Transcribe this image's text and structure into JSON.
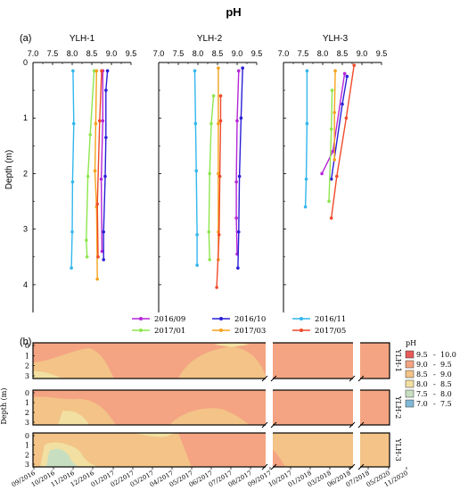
{
  "figure": {
    "title": "pH",
    "panel_a": "(a)",
    "panel_b": "(b)"
  },
  "chart_data": [
    {
      "type": "line",
      "orientation": "profile",
      "subplot": "YLH-1",
      "title": "YLH-1",
      "x_ticks": [
        "7.0",
        "7.5",
        "8.0",
        "8.5",
        "9.0",
        "9.5"
      ],
      "xlim": [
        7.0,
        9.5
      ],
      "ylim": [
        0,
        4.5
      ],
      "y_inverted": true,
      "ylabel": "Depth (m)",
      "y_ticks": [
        "0",
        "1",
        "2",
        "3",
        "4"
      ],
      "series": [
        {
          "name": "2016/09",
          "color": "#b626d8",
          "points": [
            [
              8.78,
              0.15
            ],
            [
              8.78,
              1.05
            ],
            [
              8.74,
              2.1
            ],
            [
              8.76,
              3.4
            ]
          ]
        },
        {
          "name": "2016/10",
          "color": "#2a1fd6",
          "points": [
            [
              8.9,
              0.15
            ],
            [
              8.86,
              0.5
            ],
            [
              8.86,
              1.35
            ],
            [
              8.84,
              2.05
            ],
            [
              8.8,
              3.05
            ],
            [
              8.8,
              3.55
            ]
          ]
        },
        {
          "name": "2016/11",
          "color": "#33b6ee",
          "points": [
            [
              8.02,
              0.15
            ],
            [
              8.04,
              1.1
            ],
            [
              8.01,
              2.15
            ],
            [
              8.0,
              3.05
            ],
            [
              7.98,
              3.7
            ]
          ]
        },
        {
          "name": "2017/01",
          "color": "#8ee64e",
          "points": [
            [
              8.56,
              0.15
            ],
            [
              8.46,
              1.3
            ],
            [
              8.4,
              2.05
            ],
            [
              8.36,
              3.2
            ],
            [
              8.38,
              3.5
            ]
          ]
        },
        {
          "name": "2017/03",
          "color": "#f5a21b",
          "points": [
            [
              8.62,
              0.15
            ],
            [
              8.6,
              1.1
            ],
            [
              8.58,
              1.95
            ],
            [
              8.62,
              2.6
            ],
            [
              8.64,
              3.9
            ]
          ]
        },
        {
          "name": "2017/05",
          "color": "#f04a2a",
          "points": [
            [
              8.75,
              0.15
            ],
            [
              8.7,
              1.05
            ],
            [
              8.64,
              2.55
            ],
            [
              8.66,
              3.5
            ]
          ]
        }
      ]
    },
    {
      "type": "line",
      "orientation": "profile",
      "subplot": "YLH-2",
      "title": "YLH-2",
      "x_ticks": [
        "7.0",
        "7.5",
        "8.0",
        "8.5",
        "9.0",
        "9.5"
      ],
      "xlim": [
        7.0,
        9.5
      ],
      "ylim": [
        0,
        4.5
      ],
      "y_inverted": true,
      "series": [
        {
          "name": "2016/09",
          "color": "#b626d8",
          "points": [
            [
              9.04,
              0.15
            ],
            [
              9.0,
              1.05
            ],
            [
              8.98,
              2.15
            ],
            [
              8.98,
              2.8
            ],
            [
              9.0,
              3.45
            ]
          ]
        },
        {
          "name": "2016/10",
          "color": "#2a1fd6",
          "points": [
            [
              9.14,
              0.1
            ],
            [
              9.1,
              1.0
            ],
            [
              9.06,
              2.05
            ],
            [
              9.04,
              3.05
            ],
            [
              9.02,
              3.7
            ]
          ]
        },
        {
          "name": "2016/11",
          "color": "#33b6ee",
          "points": [
            [
              7.92,
              0.15
            ],
            [
              7.94,
              1.1
            ],
            [
              7.96,
              1.95
            ],
            [
              7.98,
              3.1
            ],
            [
              7.98,
              3.65
            ]
          ]
        },
        {
          "name": "2017/01",
          "color": "#8ee64e",
          "points": [
            [
              8.4,
              0.6
            ],
            [
              8.34,
              1.1
            ],
            [
              8.3,
              2.0
            ],
            [
              8.28,
              3.05
            ],
            [
              8.3,
              3.55
            ]
          ]
        },
        {
          "name": "2017/03",
          "color": "#f5a21b",
          "points": [
            [
              8.52,
              0.1
            ],
            [
              8.52,
              1.1
            ],
            [
              8.52,
              2.0
            ],
            [
              8.52,
              3.05
            ],
            [
              8.52,
              3.55
            ]
          ]
        },
        {
          "name": "2017/05",
          "color": "#f04a2a",
          "points": [
            [
              8.58,
              0.6
            ],
            [
              8.58,
              1.05
            ],
            [
              8.56,
              2.05
            ],
            [
              8.54,
              3.1
            ],
            [
              8.48,
              4.05
            ]
          ]
        }
      ]
    },
    {
      "type": "line",
      "orientation": "profile",
      "subplot": "YLH-3",
      "title": "YLH-3",
      "x_ticks": [
        "7.0",
        "7.5",
        "8.0",
        "8.5",
        "9.0",
        "9.5"
      ],
      "xlim": [
        7.0,
        9.5
      ],
      "ylim": [
        0,
        4.5
      ],
      "y_inverted": true,
      "series": [
        {
          "name": "2016/09",
          "color": "#b626d8",
          "points": [
            [
              8.56,
              0.2
            ],
            [
              8.26,
              1.6
            ],
            [
              7.98,
              2.0
            ]
          ]
        },
        {
          "name": "2016/10",
          "color": "#2a1fd6",
          "points": [
            [
              8.62,
              0.25
            ],
            [
              8.5,
              0.75
            ],
            [
              8.22,
              2.1
            ]
          ]
        },
        {
          "name": "2016/11",
          "color": "#33b6ee",
          "points": [
            [
              7.6,
              0.15
            ],
            [
              7.6,
              1.1
            ],
            [
              7.58,
              2.1
            ],
            [
              7.56,
              2.6
            ]
          ]
        },
        {
          "name": "2017/01",
          "color": "#8ee64e",
          "points": [
            [
              8.24,
              0.5
            ],
            [
              8.22,
              1.2
            ],
            [
              8.16,
              2.5
            ]
          ]
        },
        {
          "name": "2017/03",
          "color": "#f5a21b",
          "points": [
            [
              8.32,
              0.15
            ],
            [
              8.3,
              0.9
            ],
            [
              8.3,
              1.75
            ]
          ]
        },
        {
          "name": "2017/05",
          "color": "#f04a2a",
          "points": [
            [
              8.8,
              0.05
            ],
            [
              8.6,
              1.0
            ],
            [
              8.36,
              2.05
            ],
            [
              8.22,
              2.8
            ]
          ]
        }
      ]
    },
    {
      "type": "heatmap",
      "subplots": [
        "YLH-1",
        "YLH-2",
        "YLH-3"
      ],
      "ylabel": "Depth (m)",
      "y_ticks": [
        "0",
        "1",
        "2",
        "3"
      ],
      "x_ticks": [
        "09/2016",
        "10/2016",
        "11/2016",
        "12/2016",
        "01/2017",
        "02/2017",
        "03/2017",
        "04/2017",
        "05/2017",
        "06/2017",
        "07/2017",
        "08/2017",
        "09/2017",
        "10/2017",
        "01/2018",
        "03/2018",
        "06/2018",
        "07/2018",
        "05/2020",
        "11/2020"
      ],
      "colorbar": {
        "title": "pH",
        "levels": [
          {
            "from": "9.5",
            "to": "10.0",
            "color": "#e85a5a"
          },
          {
            "from": "9.0",
            "to": "9.5",
            "color": "#f4a482"
          },
          {
            "from": "8.5",
            "to": "9.0",
            "color": "#f3c387"
          },
          {
            "from": "8.0",
            "to": "8.5",
            "color": "#f1e0a1"
          },
          {
            "from": "7.5",
            "to": "8.0",
            "color": "#c7dfc0"
          },
          {
            "from": "7.0",
            "to": "7.5",
            "color": "#80b9d6"
          }
        ]
      },
      "dominant_range": "9.0 - 9.5",
      "axis_breaks": [
        "10/2017-01/2018",
        "07/2018-05/2020"
      ]
    }
  ],
  "legend": {
    "entries": [
      "2016/09",
      "2016/10",
      "2016/11",
      "2017/01",
      "2017/03",
      "2017/05"
    ]
  }
}
